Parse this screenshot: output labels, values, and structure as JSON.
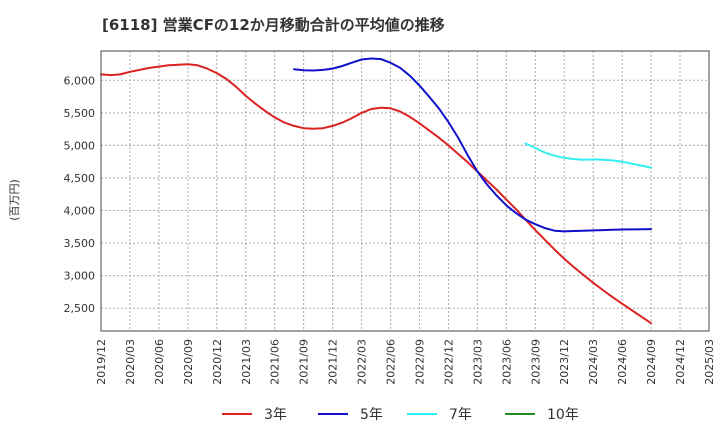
{
  "chart_data": {
    "type": "line",
    "title": "[6118]  営業CFの12か月移動合計の平均値の推移",
    "ylabel": "(百万円)",
    "xlabel": "",
    "ylim": [
      2150,
      6450
    ],
    "yticks": [
      {
        "value": 2500,
        "label": "2,500"
      },
      {
        "value": 3000,
        "label": "3,000"
      },
      {
        "value": 3500,
        "label": "3,500"
      },
      {
        "value": 4000,
        "label": "4,000"
      },
      {
        "value": 4500,
        "label": "4,500"
      },
      {
        "value": 5000,
        "label": "5,000"
      },
      {
        "value": 5500,
        "label": "5,500"
      },
      {
        "value": 6000,
        "label": "6,000"
      }
    ],
    "xticks": [
      "2019/12",
      "2020/03",
      "2020/06",
      "2020/09",
      "2020/12",
      "2021/03",
      "2021/06",
      "2021/09",
      "2021/12",
      "2022/03",
      "2022/06",
      "2022/09",
      "2022/12",
      "2023/03",
      "2023/06",
      "2023/09",
      "2023/12",
      "2024/03",
      "2024/06",
      "2024/09",
      "2024/12",
      "2025/03"
    ],
    "grid": true,
    "legend_position": "bottom",
    "series": [
      {
        "name": "3年",
        "color": "#dd2222",
        "points": [
          [
            "2019/12",
            6090
          ],
          [
            "2020/01",
            6080
          ],
          [
            "2020/02",
            6090
          ],
          [
            "2020/03",
            6130
          ],
          [
            "2020/04",
            6160
          ],
          [
            "2020/05",
            6190
          ],
          [
            "2020/06",
            6210
          ],
          [
            "2020/07",
            6230
          ],
          [
            "2020/08",
            6240
          ],
          [
            "2020/09",
            6245
          ],
          [
            "2020/10",
            6230
          ],
          [
            "2020/11",
            6180
          ],
          [
            "2020/12",
            6110
          ],
          [
            "2021/01",
            6020
          ],
          [
            "2021/02",
            5900
          ],
          [
            "2021/03",
            5760
          ],
          [
            "2021/04",
            5640
          ],
          [
            "2021/05",
            5530
          ],
          [
            "2021/06",
            5430
          ],
          [
            "2021/07",
            5350
          ],
          [
            "2021/08",
            5300
          ],
          [
            "2021/09",
            5265
          ],
          [
            "2021/10",
            5255
          ],
          [
            "2021/11",
            5265
          ],
          [
            "2021/12",
            5300
          ],
          [
            "2022/01",
            5350
          ],
          [
            "2022/02",
            5420
          ],
          [
            "2022/03",
            5500
          ],
          [
            "2022/04",
            5560
          ],
          [
            "2022/05",
            5580
          ],
          [
            "2022/06",
            5570
          ],
          [
            "2022/07",
            5520
          ],
          [
            "2022/08",
            5440
          ],
          [
            "2022/09",
            5340
          ],
          [
            "2022/10",
            5230
          ],
          [
            "2022/11",
            5120
          ],
          [
            "2022/12",
            5000
          ],
          [
            "2023/01",
            4870
          ],
          [
            "2023/02",
            4740
          ],
          [
            "2023/03",
            4600
          ],
          [
            "2023/04",
            4460
          ],
          [
            "2023/05",
            4320
          ],
          [
            "2023/06",
            4170
          ],
          [
            "2023/07",
            4020
          ],
          [
            "2023/08",
            3860
          ],
          [
            "2023/09",
            3700
          ],
          [
            "2023/10",
            3550
          ],
          [
            "2023/11",
            3400
          ],
          [
            "2023/12",
            3260
          ],
          [
            "2024/01",
            3130
          ],
          [
            "2024/02",
            3010
          ],
          [
            "2024/03",
            2890
          ],
          [
            "2024/04",
            2780
          ],
          [
            "2024/05",
            2670
          ],
          [
            "2024/06",
            2570
          ],
          [
            "2024/07",
            2470
          ],
          [
            "2024/08",
            2370
          ],
          [
            "2024/09",
            2270
          ]
        ]
      },
      {
        "name": "5年",
        "color": "#1111cc",
        "points": [
          [
            "2021/08",
            6170
          ],
          [
            "2021/09",
            6155
          ],
          [
            "2021/10",
            6150
          ],
          [
            "2021/11",
            6160
          ],
          [
            "2021/12",
            6180
          ],
          [
            "2022/01",
            6220
          ],
          [
            "2022/02",
            6270
          ],
          [
            "2022/03",
            6320
          ],
          [
            "2022/04",
            6335
          ],
          [
            "2022/05",
            6325
          ],
          [
            "2022/06",
            6270
          ],
          [
            "2022/07",
            6190
          ],
          [
            "2022/08",
            6070
          ],
          [
            "2022/09",
            5920
          ],
          [
            "2022/10",
            5750
          ],
          [
            "2022/11",
            5570
          ],
          [
            "2022/12",
            5360
          ],
          [
            "2023/01",
            5120
          ],
          [
            "2023/02",
            4850
          ],
          [
            "2023/03",
            4600
          ],
          [
            "2023/04",
            4400
          ],
          [
            "2023/05",
            4230
          ],
          [
            "2023/06",
            4080
          ],
          [
            "2023/07",
            3960
          ],
          [
            "2023/08",
            3860
          ],
          [
            "2023/09",
            3790
          ],
          [
            "2023/10",
            3730
          ],
          [
            "2023/11",
            3690
          ],
          [
            "2023/12",
            3680
          ],
          [
            "2024/01",
            3685
          ],
          [
            "2024/02",
            3690
          ],
          [
            "2024/03",
            3695
          ],
          [
            "2024/04",
            3700
          ],
          [
            "2024/05",
            3705
          ],
          [
            "2024/06",
            3708
          ],
          [
            "2024/07",
            3710
          ],
          [
            "2024/08",
            3712
          ],
          [
            "2024/09",
            3715
          ]
        ]
      },
      {
        "name": "7年",
        "color": "#33eeee",
        "points": [
          [
            "2023/08",
            5030
          ],
          [
            "2023/09",
            4960
          ],
          [
            "2023/10",
            4890
          ],
          [
            "2023/11",
            4840
          ],
          [
            "2023/12",
            4810
          ],
          [
            "2024/01",
            4790
          ],
          [
            "2024/02",
            4780
          ],
          [
            "2024/03",
            4785
          ],
          [
            "2024/04",
            4780
          ],
          [
            "2024/05",
            4770
          ],
          [
            "2024/06",
            4750
          ],
          [
            "2024/07",
            4720
          ],
          [
            "2024/08",
            4690
          ],
          [
            "2024/09",
            4660
          ]
        ]
      },
      {
        "name": "10年",
        "color": "#228822",
        "points": []
      }
    ]
  }
}
